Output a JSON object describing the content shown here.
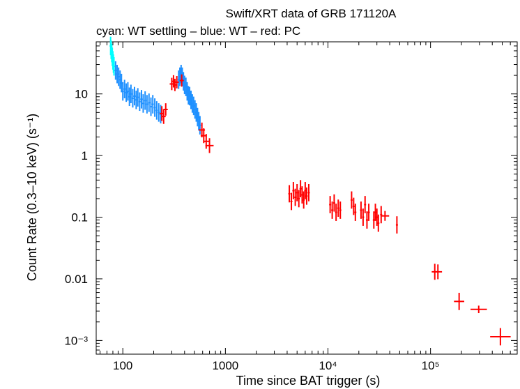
{
  "chart_data": {
    "type": "scatter",
    "title": "Swift/XRT data of GRB 171120A",
    "subtitle": "cyan: WT settling – blue: WT – red: PC",
    "xlabel": "Time since BAT trigger (s)",
    "ylabel": "Count Rate (0.3–10 keV) (s⁻¹)",
    "x_scale": "log",
    "y_scale": "log",
    "xlim": [
      55,
      700000
    ],
    "ylim": [
      0.0006,
      70
    ],
    "x_ticks": [
      {
        "value": 100,
        "label": "100"
      },
      {
        "value": 1000,
        "label": "1000"
      },
      {
        "value": 10000,
        "label": "10⁴"
      },
      {
        "value": 100000,
        "label": "10⁵"
      }
    ],
    "y_ticks": [
      {
        "value": 10,
        "label": "10"
      },
      {
        "value": 1,
        "label": "1"
      },
      {
        "value": 0.1,
        "label": "0.1"
      },
      {
        "value": 0.01,
        "label": "0.01"
      },
      {
        "value": 0.001,
        "label": "10⁻³"
      }
    ],
    "colors": {
      "wt_settling": "#00ffff",
      "wt": "#1e90ff",
      "pc": "#ff0000"
    },
    "series": [
      {
        "key": "wt_settling",
        "color": "#00ffff",
        "points": [
          [
            76,
            60,
            0.01,
            0.15
          ],
          [
            77,
            52,
            0.01,
            0.15
          ],
          [
            78,
            46,
            0.01,
            0.15
          ],
          [
            79,
            40,
            0.01,
            0.15
          ],
          [
            80,
            35,
            0.01,
            0.15
          ],
          [
            81,
            31,
            0.01,
            0.15
          ],
          [
            82,
            28,
            0.01,
            0.15
          ]
        ]
      },
      {
        "key": "wt",
        "color": "#1e90ff",
        "points": [
          [
            85,
            24,
            0.01,
            0.15
          ],
          [
            88,
            21,
            0.01,
            0.15
          ],
          [
            91,
            19,
            0.01,
            0.15
          ],
          [
            94,
            17,
            0.01,
            0.15
          ],
          [
            97,
            15,
            0.01,
            0.15
          ],
          [
            100,
            11,
            0.01,
            0.15
          ],
          [
            104,
            12,
            0.01,
            0.15
          ],
          [
            108,
            10.5,
            0.01,
            0.15
          ],
          [
            112,
            11,
            0.01,
            0.15
          ],
          [
            116,
            9,
            0.01,
            0.15
          ],
          [
            120,
            10,
            0.01,
            0.15
          ],
          [
            125,
            8.5,
            0.01,
            0.15
          ],
          [
            130,
            9.2,
            0.01,
            0.15
          ],
          [
            135,
            8,
            0.01,
            0.15
          ],
          [
            140,
            8.8,
            0.01,
            0.15
          ],
          [
            146,
            7.5,
            0.01,
            0.15
          ],
          [
            152,
            8.2,
            0.01,
            0.15
          ],
          [
            158,
            7,
            0.01,
            0.15
          ],
          [
            165,
            7.8,
            0.01,
            0.15
          ],
          [
            172,
            6.8,
            0.01,
            0.15
          ],
          [
            180,
            7.2,
            0.01,
            0.15
          ],
          [
            188,
            6.2,
            0.01,
            0.15
          ],
          [
            196,
            6.8,
            0.01,
            0.15
          ],
          [
            205,
            6,
            0.01,
            0.15
          ],
          [
            214,
            5.4,
            0.01,
            0.15
          ],
          [
            224,
            5.0,
            0.01,
            0.15
          ],
          [
            234,
            4.7,
            0.01,
            0.15
          ],
          [
            350,
            17,
            0.01,
            0.15
          ],
          [
            360,
            19,
            0.01,
            0.15
          ],
          [
            370,
            21,
            0.01,
            0.15
          ],
          [
            380,
            19,
            0.01,
            0.15
          ],
          [
            390,
            16,
            0.01,
            0.15
          ],
          [
            400,
            14,
            0.01,
            0.15
          ],
          [
            412,
            13,
            0.01,
            0.15
          ],
          [
            424,
            11,
            0.01,
            0.15
          ],
          [
            436,
            9.5,
            0.01,
            0.15
          ],
          [
            448,
            9.2,
            0.01,
            0.15
          ],
          [
            462,
            8,
            0.01,
            0.15
          ],
          [
            476,
            7,
            0.01,
            0.15
          ],
          [
            490,
            6.4,
            0.01,
            0.15
          ],
          [
            505,
            5.6,
            0.01,
            0.15
          ],
          [
            520,
            5,
            0.01,
            0.15
          ],
          [
            535,
            4.2,
            0.01,
            0.15
          ],
          [
            550,
            3.6,
            0.01,
            0.15
          ],
          [
            565,
            3.1,
            0.01,
            0.15
          ]
        ]
      },
      {
        "key": "pc",
        "color": "#ff0000",
        "points": [
          [
            240,
            4.8,
            0.02,
            0.12
          ],
          [
            250,
            4.3,
            0.02,
            0.12
          ],
          [
            262,
            5.6,
            0.02,
            0.1
          ],
          [
            300,
            14.5,
            0.02,
            0.1
          ],
          [
            312,
            16,
            0.02,
            0.1
          ],
          [
            322,
            14,
            0.02,
            0.1
          ],
          [
            336,
            15.5,
            0.02,
            0.1
          ],
          [
            375,
            16.5,
            0.02,
            0.1
          ],
          [
            590,
            2.6,
            0.03,
            0.12
          ],
          [
            615,
            2.1,
            0.03,
            0.12
          ],
          [
            650,
            1.7,
            0.03,
            0.12
          ],
          [
            700,
            1.45,
            0.04,
            0.12
          ],
          [
            4200,
            0.24,
            0.01,
            0.14
          ],
          [
            4400,
            0.18,
            0.01,
            0.14
          ],
          [
            4600,
            0.27,
            0.01,
            0.14
          ],
          [
            4800,
            0.21,
            0.01,
            0.14
          ],
          [
            5000,
            0.25,
            0.01,
            0.14
          ],
          [
            5200,
            0.2,
            0.01,
            0.14
          ],
          [
            5400,
            0.29,
            0.01,
            0.14
          ],
          [
            5600,
            0.23,
            0.01,
            0.14
          ],
          [
            5800,
            0.19,
            0.01,
            0.14
          ],
          [
            6000,
            0.27,
            0.01,
            0.14
          ],
          [
            6200,
            0.22,
            0.01,
            0.14
          ],
          [
            6500,
            0.25,
            0.01,
            0.14
          ],
          [
            10500,
            0.16,
            0.01,
            0.14
          ],
          [
            11000,
            0.13,
            0.01,
            0.14
          ],
          [
            11500,
            0.17,
            0.01,
            0.14
          ],
          [
            12000,
            0.12,
            0.01,
            0.14
          ],
          [
            12600,
            0.14,
            0.01,
            0.14
          ],
          [
            13200,
            0.13,
            0.01,
            0.14
          ],
          [
            17000,
            0.19,
            0.01,
            0.14
          ],
          [
            17800,
            0.15,
            0.01,
            0.14
          ],
          [
            18500,
            0.12,
            0.01,
            0.14
          ],
          [
            21000,
            0.13,
            0.01,
            0.14
          ],
          [
            22000,
            0.1,
            0.01,
            0.14
          ],
          [
            23000,
            0.16,
            0.01,
            0.14
          ],
          [
            24000,
            0.09,
            0.01,
            0.14
          ],
          [
            25000,
            0.12,
            0.01,
            0.14
          ],
          [
            28000,
            0.09,
            0.01,
            0.14
          ],
          [
            29000,
            0.12,
            0.01,
            0.14
          ],
          [
            30000,
            0.1,
            0.01,
            0.14
          ],
          [
            31000,
            0.08,
            0.01,
            0.14
          ],
          [
            33000,
            0.11,
            0.01,
            0.14
          ],
          [
            36000,
            0.105,
            0.04,
            0.08
          ],
          [
            47000,
            0.075,
            0.01,
            0.14
          ],
          [
            110000,
            0.013,
            0.03,
            0.13
          ],
          [
            118000,
            0.013,
            0.04,
            0.12
          ],
          [
            190000,
            0.0043,
            0.05,
            0.14
          ],
          [
            295000,
            0.0032,
            0.08,
            0.06
          ],
          [
            480000,
            0.00115,
            0.1,
            0.14
          ]
        ]
      }
    ]
  }
}
